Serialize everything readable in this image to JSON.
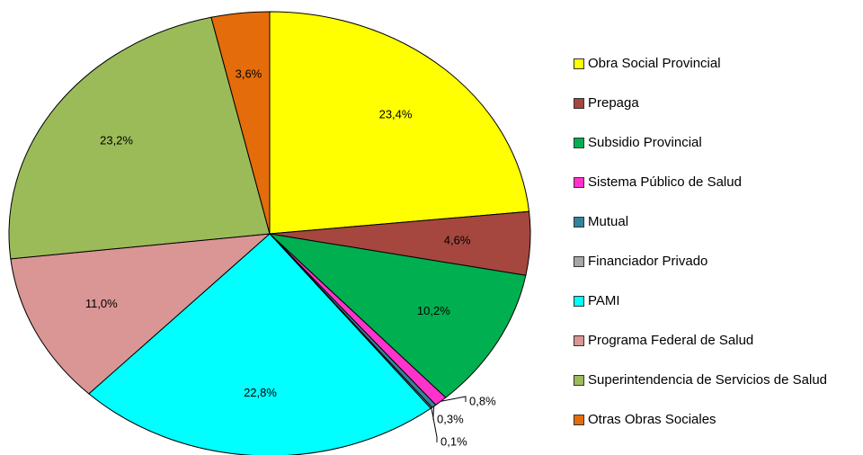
{
  "chart_data": {
    "type": "pie",
    "categories": [
      "Obra Social Provincial",
      "Prepaga",
      "Subsidio Provincial",
      "Sistema Público de Salud",
      "Mutual",
      "Financiador Privado",
      "PAMI",
      "Programa Federal de Salud",
      "Superintendencia de Servicios de Salud",
      "Otras Obras Sociales"
    ],
    "values": [
      23.4,
      4.6,
      10.2,
      0.8,
      0.3,
      0.1,
      22.8,
      11.0,
      23.2,
      3.6
    ],
    "value_labels": [
      "23,4%",
      "4,6%",
      "10,2%",
      "0,8%",
      "0,3%",
      "0,1%",
      "22,8%",
      "11,0%",
      "23,2%",
      "3,6%"
    ],
    "colors": [
      "#ffff00",
      "#a5463f",
      "#00b050",
      "#ff33cc",
      "#31849b",
      "#a6a6a6",
      "#00ffff",
      "#d99694",
      "#9bbb59",
      "#e46c0a"
    ],
    "legend": "right"
  }
}
